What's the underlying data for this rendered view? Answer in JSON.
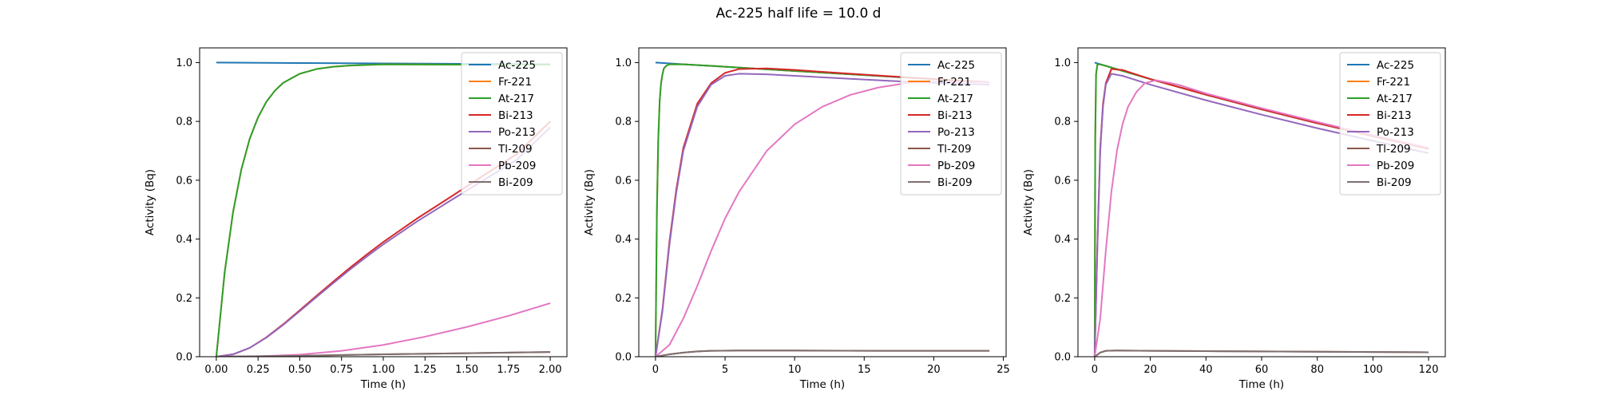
{
  "figure": {
    "title": "Ac-225   half life = 10.0 d"
  },
  "colors": {
    "Ac-225": "#1f77b4",
    "Fr-221": "#ff7f0e",
    "At-217": "#2ca02c",
    "Bi-213": "#d62728",
    "Po-213": "#9467bd",
    "Tl-209": "#8c564b",
    "Pb-209": "#e377c2",
    "Bi-209": "#7f6f6f"
  },
  "chart_data": [
    {
      "type": "line",
      "xlabel": "Time (h)",
      "ylabel": "Activity (Bq)",
      "xlim": [
        -0.1,
        2.1
      ],
      "ylim": [
        0.0,
        1.05
      ],
      "xticks": [
        0.0,
        0.25,
        0.5,
        0.75,
        1.0,
        1.25,
        1.5,
        1.75,
        2.0
      ],
      "xtick_labels": [
        "0.00",
        "0.25",
        "0.50",
        "0.75",
        "1.00",
        "1.25",
        "1.50",
        "1.75",
        "2.00"
      ],
      "yticks": [
        0.0,
        0.2,
        0.4,
        0.6,
        0.8,
        1.0
      ],
      "ytick_labels": [
        "0.0",
        "0.2",
        "0.4",
        "0.6",
        "0.8",
        "1.0"
      ],
      "legend": {
        "location": "top-right",
        "entries": [
          "Ac-225",
          "Fr-221",
          "At-217",
          "Bi-213",
          "Po-213",
          "Tl-209",
          "Pb-209",
          "Bi-209"
        ]
      },
      "series": [
        {
          "name": "Ac-225",
          "x": [
            0,
            0.5,
            1.0,
            1.5,
            2.0
          ],
          "y": [
            1.0,
            0.9986,
            0.9971,
            0.9957,
            0.9942
          ]
        },
        {
          "name": "Fr-221",
          "x": [
            0,
            0.05,
            0.1,
            0.15,
            0.2,
            0.25,
            0.3,
            0.35,
            0.4,
            0.5,
            0.6,
            0.7,
            0.8,
            1.0,
            1.5,
            2.0
          ],
          "y": [
            0,
            0.287,
            0.491,
            0.637,
            0.741,
            0.814,
            0.867,
            0.904,
            0.931,
            0.962,
            0.978,
            0.986,
            0.99,
            0.994,
            0.993,
            0.993
          ]
        },
        {
          "name": "At-217",
          "x": [
            0,
            0.05,
            0.1,
            0.15,
            0.2,
            0.25,
            0.3,
            0.35,
            0.4,
            0.5,
            0.6,
            0.7,
            0.8,
            1.0,
            1.5,
            2.0
          ],
          "y": [
            0,
            0.287,
            0.491,
            0.637,
            0.741,
            0.814,
            0.867,
            0.904,
            0.931,
            0.962,
            0.978,
            0.986,
            0.99,
            0.994,
            0.993,
            0.993
          ]
        },
        {
          "name": "Bi-213",
          "x": [
            0,
            0.1,
            0.2,
            0.3,
            0.4,
            0.5,
            0.6,
            0.7,
            0.8,
            0.9,
            1.0,
            1.2,
            1.4,
            1.6,
            1.8,
            2.0
          ],
          "y": [
            0,
            0.008,
            0.03,
            0.066,
            0.11,
            0.158,
            0.207,
            0.255,
            0.302,
            0.347,
            0.39,
            0.469,
            0.542,
            0.616,
            0.689,
            0.8
          ]
        },
        {
          "name": "Po-213",
          "x": [
            0,
            0.1,
            0.2,
            0.3,
            0.4,
            0.5,
            0.6,
            0.7,
            0.8,
            0.9,
            1.0,
            1.2,
            1.4,
            1.6,
            1.8,
            2.0
          ],
          "y": [
            0,
            0.008,
            0.03,
            0.065,
            0.108,
            0.155,
            0.203,
            0.25,
            0.296,
            0.34,
            0.382,
            0.459,
            0.53,
            0.6,
            0.67,
            0.78
          ]
        },
        {
          "name": "Tl-209",
          "x": [
            0,
            0.5,
            1.0,
            1.5,
            2.0
          ],
          "y": [
            0,
            0.003,
            0.008,
            0.012,
            0.016
          ]
        },
        {
          "name": "Pb-209",
          "x": [
            0,
            0.25,
            0.5,
            0.75,
            1.0,
            1.25,
            1.5,
            1.75,
            2.0
          ],
          "y": [
            0,
            0.001,
            0.007,
            0.02,
            0.04,
            0.068,
            0.101,
            0.139,
            0.182
          ]
        },
        {
          "name": "Bi-209",
          "x": [
            0,
            0.5,
            1.0,
            1.5,
            2.0
          ],
          "y": [
            0,
            0.003,
            0.008,
            0.012,
            0.016
          ]
        }
      ]
    },
    {
      "type": "line",
      "xlabel": "Time (h)",
      "ylabel": "Activity (Bq)",
      "xlim": [
        -1.2,
        25.2
      ],
      "ylim": [
        0.0,
        1.05
      ],
      "xticks": [
        0,
        5,
        10,
        15,
        20,
        25
      ],
      "xtick_labels": [
        "0",
        "5",
        "10",
        "15",
        "20",
        "25"
      ],
      "yticks": [
        0.0,
        0.2,
        0.4,
        0.6,
        0.8,
        1.0
      ],
      "ytick_labels": [
        "0.0",
        "0.2",
        "0.4",
        "0.6",
        "0.8",
        "1.0"
      ],
      "legend": {
        "location": "top-right",
        "entries": [
          "Ac-225",
          "Fr-221",
          "At-217",
          "Bi-213",
          "Po-213",
          "Tl-209",
          "Pb-209",
          "Bi-209"
        ]
      },
      "series": [
        {
          "name": "Ac-225",
          "x": [
            0,
            6,
            12,
            18,
            24
          ],
          "y": [
            1.0,
            0.983,
            0.966,
            0.949,
            0.933
          ]
        },
        {
          "name": "Fr-221",
          "x": [
            0,
            0.1,
            0.2,
            0.3,
            0.4,
            0.5,
            0.6,
            0.8,
            1.0,
            2,
            4,
            8,
            12,
            16,
            20,
            24
          ],
          "y": [
            0,
            0.49,
            0.74,
            0.87,
            0.93,
            0.96,
            0.98,
            0.99,
            0.994,
            0.994,
            0.989,
            0.977,
            0.966,
            0.955,
            0.944,
            0.933
          ]
        },
        {
          "name": "At-217",
          "x": [
            0,
            0.1,
            0.2,
            0.3,
            0.4,
            0.5,
            0.6,
            0.8,
            1.0,
            2,
            4,
            8,
            12,
            16,
            20,
            24
          ],
          "y": [
            0,
            0.49,
            0.74,
            0.87,
            0.93,
            0.96,
            0.98,
            0.99,
            0.994,
            0.994,
            0.989,
            0.977,
            0.966,
            0.955,
            0.944,
            0.933
          ]
        },
        {
          "name": "Bi-213",
          "x": [
            0,
            0.5,
            1,
            1.5,
            2,
            3,
            4,
            5,
            6,
            8,
            10,
            14,
            18,
            22,
            24
          ],
          "y": [
            0,
            0.16,
            0.39,
            0.57,
            0.71,
            0.86,
            0.93,
            0.965,
            0.978,
            0.98,
            0.975,
            0.962,
            0.95,
            0.938,
            0.933
          ]
        },
        {
          "name": "Po-213",
          "x": [
            0,
            0.5,
            1,
            1.5,
            2,
            3,
            4,
            5,
            6,
            8,
            10,
            14,
            18,
            22,
            24
          ],
          "y": [
            0,
            0.155,
            0.38,
            0.56,
            0.7,
            0.85,
            0.925,
            0.955,
            0.962,
            0.96,
            0.955,
            0.945,
            0.935,
            0.928,
            0.925
          ]
        },
        {
          "name": "Tl-209",
          "x": [
            0,
            1,
            2,
            3,
            4,
            6,
            10,
            16,
            24
          ],
          "y": [
            0,
            0.008,
            0.014,
            0.018,
            0.02,
            0.021,
            0.021,
            0.02,
            0.02
          ]
        },
        {
          "name": "Pb-209",
          "x": [
            0,
            1,
            2,
            3,
            4,
            5,
            6,
            8,
            10,
            12,
            14,
            16,
            18,
            20,
            22,
            24
          ],
          "y": [
            0,
            0.04,
            0.13,
            0.24,
            0.36,
            0.47,
            0.56,
            0.7,
            0.79,
            0.85,
            0.89,
            0.915,
            0.93,
            0.935,
            0.935,
            0.933
          ]
        },
        {
          "name": "Bi-209",
          "x": [
            0,
            1,
            2,
            3,
            4,
            6,
            10,
            16,
            24
          ],
          "y": [
            0,
            0.008,
            0.014,
            0.018,
            0.02,
            0.021,
            0.021,
            0.02,
            0.02
          ]
        }
      ]
    },
    {
      "type": "line",
      "xlabel": "Time (h)",
      "ylabel": "Activity (Bq)",
      "xlim": [
        -6,
        126
      ],
      "ylim": [
        0.0,
        1.05
      ],
      "xticks": [
        0,
        20,
        40,
        60,
        80,
        100,
        120
      ],
      "xtick_labels": [
        "0",
        "20",
        "40",
        "60",
        "80",
        "100",
        "120"
      ],
      "yticks": [
        0.0,
        0.2,
        0.4,
        0.6,
        0.8,
        1.0
      ],
      "ytick_labels": [
        "0.0",
        "0.2",
        "0.4",
        "0.6",
        "0.8",
        "1.0"
      ],
      "legend": {
        "location": "top-right",
        "entries": [
          "Ac-225",
          "Fr-221",
          "At-217",
          "Bi-213",
          "Po-213",
          "Tl-209",
          "Pb-209",
          "Bi-209"
        ]
      },
      "series": [
        {
          "name": "Ac-225",
          "x": [
            0,
            20,
            40,
            60,
            80,
            100,
            120
          ],
          "y": [
            1.0,
            0.944,
            0.891,
            0.841,
            0.794,
            0.75,
            0.707
          ]
        },
        {
          "name": "Fr-221",
          "x": [
            0,
            0.2,
            0.5,
            1,
            2,
            5,
            10,
            20,
            40,
            60,
            80,
            100,
            120
          ],
          "y": [
            0,
            0.74,
            0.96,
            0.994,
            0.994,
            0.986,
            0.972,
            0.944,
            0.891,
            0.841,
            0.794,
            0.75,
            0.707
          ]
        },
        {
          "name": "At-217",
          "x": [
            0,
            0.2,
            0.5,
            1,
            2,
            5,
            10,
            20,
            40,
            60,
            80,
            100,
            120
          ],
          "y": [
            0,
            0.74,
            0.96,
            0.994,
            0.994,
            0.986,
            0.972,
            0.944,
            0.891,
            0.841,
            0.794,
            0.75,
            0.707
          ]
        },
        {
          "name": "Bi-213",
          "x": [
            0,
            1,
            2,
            3,
            4,
            6,
            10,
            20,
            40,
            60,
            80,
            100,
            120
          ],
          "y": [
            0,
            0.39,
            0.71,
            0.86,
            0.93,
            0.978,
            0.975,
            0.944,
            0.891,
            0.841,
            0.794,
            0.75,
            0.707
          ]
        },
        {
          "name": "Po-213",
          "x": [
            0,
            1,
            2,
            3,
            4,
            6,
            10,
            20,
            40,
            60,
            80,
            100,
            120
          ],
          "y": [
            0,
            0.38,
            0.7,
            0.85,
            0.925,
            0.962,
            0.955,
            0.925,
            0.872,
            0.823,
            0.777,
            0.734,
            0.692
          ]
        },
        {
          "name": "Tl-209",
          "x": [
            0,
            2,
            4,
            8,
            20,
            40,
            60,
            80,
            100,
            120
          ],
          "y": [
            0,
            0.014,
            0.02,
            0.021,
            0.02,
            0.019,
            0.018,
            0.017,
            0.016,
            0.015
          ]
        },
        {
          "name": "Pb-209",
          "x": [
            0,
            2,
            4,
            6,
            8,
            10,
            12,
            15,
            18,
            22,
            30,
            40,
            60,
            80,
            100,
            120
          ],
          "y": [
            0,
            0.13,
            0.36,
            0.56,
            0.7,
            0.79,
            0.85,
            0.9,
            0.93,
            0.94,
            0.925,
            0.895,
            0.845,
            0.798,
            0.753,
            0.71
          ]
        },
        {
          "name": "Bi-209",
          "x": [
            0,
            2,
            4,
            8,
            20,
            40,
            60,
            80,
            100,
            120
          ],
          "y": [
            0,
            0.014,
            0.02,
            0.021,
            0.02,
            0.019,
            0.018,
            0.017,
            0.016,
            0.015
          ]
        }
      ]
    }
  ]
}
